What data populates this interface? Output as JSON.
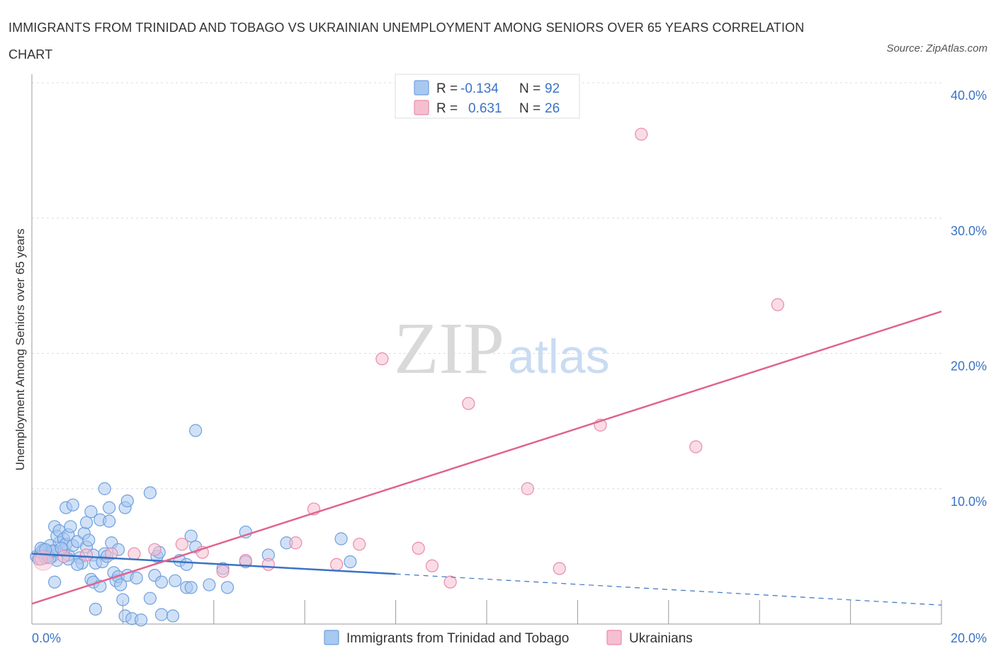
{
  "title": "IMMIGRANTS FROM TRINIDAD AND TOBAGO VS UKRAINIAN UNEMPLOYMENT AMONG SENIORS OVER 65 YEARS CORRELATION CHART",
  "source": "Source: ZipAtlas.com",
  "watermark": {
    "zip": "ZIP",
    "atlas": "atlas"
  },
  "legend_top": [
    {
      "r_label": "R =",
      "r_value": "-0.134",
      "n_label": "N =",
      "n_value": "92",
      "color": "#a9c8f0",
      "stroke": "#6fa0de"
    },
    {
      "r_label": "R =",
      "r_value": "0.631",
      "n_label": "N =",
      "n_value": "26",
      "color": "#f6bfd0",
      "stroke": "#e98aaa"
    }
  ],
  "legend_bottom": [
    {
      "label": "Immigrants from Trinidad and Tobago",
      "color": "#a9c8f0",
      "stroke": "#6fa0de"
    },
    {
      "label": "Ukrainians",
      "color": "#f6bfd0",
      "stroke": "#e98aaa"
    }
  ],
  "chart_data": {
    "type": "scatter",
    "title": "IMMIGRANTS FROM TRINIDAD AND TOBAGO VS UKRAINIAN UNEMPLOYMENT AMONG SENIORS OVER 65 YEARS CORRELATION CHART",
    "xlabel": "",
    "ylabel": "Unemployment Among Seniors over 65 years",
    "xlim": [
      0,
      20
    ],
    "ylim": [
      0,
      40
    ],
    "x_tick_labels": [
      "0.0%",
      "20.0%"
    ],
    "y_ticks": [
      10,
      20,
      30,
      40
    ],
    "y_tick_labels": [
      "10.0%",
      "20.0%",
      "30.0%",
      "40.0%"
    ],
    "grid": true,
    "series": [
      {
        "name": "Immigrants from Trinidad and Tobago",
        "color": "#6fa0de",
        "points": [
          [
            0.1,
            5.0
          ],
          [
            0.15,
            4.8
          ],
          [
            0.2,
            5.3
          ],
          [
            0.25,
            5.5
          ],
          [
            0.3,
            4.9
          ],
          [
            0.35,
            5.2
          ],
          [
            0.4,
            5.8
          ],
          [
            0.45,
            5.0
          ],
          [
            0.5,
            5.4
          ],
          [
            0.55,
            4.7
          ],
          [
            0.6,
            6.0
          ],
          [
            0.5,
            7.2
          ],
          [
            0.55,
            6.5
          ],
          [
            0.6,
            6.9
          ],
          [
            0.7,
            6.3
          ],
          [
            0.7,
            5.5
          ],
          [
            0.75,
            5.9
          ],
          [
            0.8,
            6.6
          ],
          [
            0.8,
            5.1
          ],
          [
            0.9,
            5.8
          ],
          [
            0.75,
            8.6
          ],
          [
            0.85,
            7.2
          ],
          [
            0.9,
            8.8
          ],
          [
            1.0,
            6.1
          ],
          [
            1.05,
            4.9
          ],
          [
            1.1,
            4.5
          ],
          [
            1.15,
            6.7
          ],
          [
            1.2,
            5.7
          ],
          [
            1.2,
            7.5
          ],
          [
            1.3,
            8.3
          ],
          [
            1.35,
            5.1
          ],
          [
            1.4,
            4.5
          ],
          [
            1.5,
            7.7
          ],
          [
            1.55,
            4.6
          ],
          [
            1.6,
            5.2
          ],
          [
            1.65,
            5.0
          ],
          [
            1.7,
            7.6
          ],
          [
            1.75,
            6.0
          ],
          [
            1.6,
            10.0
          ],
          [
            1.7,
            8.6
          ],
          [
            1.8,
            3.8
          ],
          [
            1.85,
            3.2
          ],
          [
            1.9,
            3.5
          ],
          [
            1.95,
            2.9
          ],
          [
            2.0,
            1.8
          ],
          [
            2.05,
            0.6
          ],
          [
            2.1,
            3.6
          ],
          [
            2.05,
            8.6
          ],
          [
            2.1,
            9.1
          ],
          [
            2.2,
            0.4
          ],
          [
            1.3,
            3.3
          ],
          [
            1.35,
            3.1
          ],
          [
            1.5,
            2.8
          ],
          [
            1.4,
            1.1
          ],
          [
            2.6,
            9.7
          ],
          [
            2.7,
            3.6
          ],
          [
            2.75,
            5.0
          ],
          [
            2.8,
            5.3
          ],
          [
            2.85,
            3.1
          ],
          [
            2.6,
            1.9
          ],
          [
            2.85,
            0.7
          ],
          [
            3.1,
            0.6
          ],
          [
            3.15,
            3.2
          ],
          [
            3.25,
            4.7
          ],
          [
            3.4,
            4.4
          ],
          [
            3.4,
            2.7
          ],
          [
            3.5,
            2.7
          ],
          [
            3.5,
            6.5
          ],
          [
            3.6,
            5.7
          ],
          [
            3.9,
            2.9
          ],
          [
            3.6,
            14.3
          ],
          [
            4.2,
            4.1
          ],
          [
            4.3,
            2.7
          ],
          [
            4.7,
            4.6
          ],
          [
            4.7,
            6.8
          ],
          [
            5.2,
            5.1
          ],
          [
            5.6,
            6.0
          ],
          [
            6.8,
            6.3
          ],
          [
            7.0,
            4.6
          ],
          [
            0.35,
            5.0
          ],
          [
            0.4,
            4.9
          ],
          [
            0.45,
            5.4
          ],
          [
            0.65,
            5.6
          ],
          [
            0.5,
            3.1
          ],
          [
            1.0,
            4.4
          ],
          [
            1.25,
            6.2
          ],
          [
            0.2,
            5.6
          ],
          [
            0.3,
            5.5
          ],
          [
            0.8,
            4.8
          ],
          [
            2.3,
            3.4
          ],
          [
            1.9,
            5.5
          ],
          [
            2.4,
            0.3
          ]
        ]
      },
      {
        "name": "Ukrainians",
        "color": "#e98aaa",
        "points": [
          [
            0.2,
            4.8
          ],
          [
            0.7,
            5.0
          ],
          [
            1.2,
            5.1
          ],
          [
            1.75,
            5.2
          ],
          [
            2.25,
            5.2
          ],
          [
            2.7,
            5.5
          ],
          [
            3.3,
            5.9
          ],
          [
            3.75,
            5.3
          ],
          [
            4.2,
            3.9
          ],
          [
            4.7,
            4.7
          ],
          [
            5.2,
            4.4
          ],
          [
            5.8,
            6.0
          ],
          [
            6.2,
            8.5
          ],
          [
            6.7,
            4.4
          ],
          [
            7.2,
            5.9
          ],
          [
            7.7,
            19.6
          ],
          [
            8.5,
            5.6
          ],
          [
            8.8,
            4.3
          ],
          [
            9.2,
            3.1
          ],
          [
            9.6,
            16.3
          ],
          [
            10.9,
            10.0
          ],
          [
            11.6,
            4.1
          ],
          [
            12.5,
            14.7
          ],
          [
            13.4,
            36.2
          ],
          [
            14.6,
            13.1
          ],
          [
            16.4,
            23.6
          ]
        ]
      }
    ],
    "trend_lines": [
      {
        "series": "Immigrants from Trinidad and Tobago",
        "color": "#3a73c4",
        "solid_from": [
          0,
          5.2
        ],
        "solid_to": [
          8.0,
          3.7
        ],
        "dashed_to": [
          20.0,
          1.4
        ]
      },
      {
        "series": "Ukrainians",
        "color": "#e0648e",
        "from": [
          0,
          1.5
        ],
        "to": [
          20.0,
          23.1
        ]
      }
    ]
  }
}
